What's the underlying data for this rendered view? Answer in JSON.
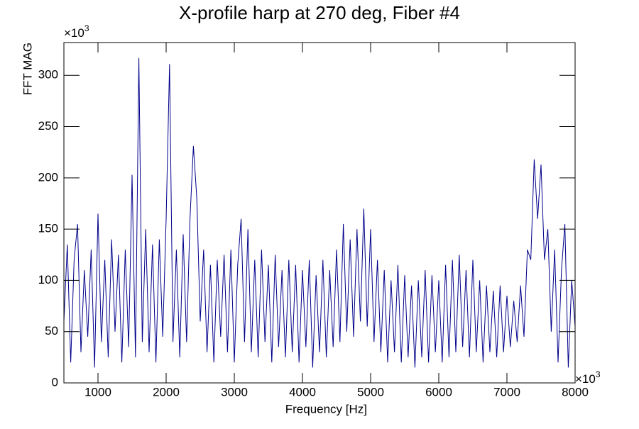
{
  "chart_data": {
    "type": "line",
    "title": "X-profile harp at 270 deg, Fiber #4",
    "x_label": "Frequency [Hz]",
    "y_label": "FFT MAG",
    "x_multiplier": {
      "base": "×10",
      "exp": "3"
    },
    "y_multiplier": {
      "base": "×10",
      "exp": "3"
    },
    "x": [
      500,
      550,
      600,
      650,
      700,
      750,
      800,
      850,
      900,
      950,
      1000,
      1050,
      1100,
      1150,
      1200,
      1250,
      1300,
      1350,
      1400,
      1450,
      1500,
      1550,
      1600,
      1650,
      1700,
      1750,
      1800,
      1850,
      1900,
      1950,
      2000,
      2050,
      2100,
      2150,
      2200,
      2250,
      2300,
      2350,
      2400,
      2450,
      2500,
      2550,
      2600,
      2650,
      2700,
      2750,
      2800,
      2850,
      2900,
      2950,
      3000,
      3050,
      3100,
      3150,
      3200,
      3250,
      3300,
      3350,
      3400,
      3450,
      3500,
      3550,
      3600,
      3650,
      3700,
      3750,
      3800,
      3850,
      3900,
      3950,
      4000,
      4050,
      4100,
      4150,
      4200,
      4250,
      4300,
      4350,
      4400,
      4450,
      4500,
      4550,
      4600,
      4650,
      4700,
      4750,
      4800,
      4850,
      4900,
      4950,
      5000,
      5050,
      5100,
      5150,
      5200,
      5250,
      5300,
      5350,
      5400,
      5450,
      5500,
      5550,
      5600,
      5650,
      5700,
      5750,
      5800,
      5850,
      5900,
      5950,
      6000,
      6050,
      6100,
      6150,
      6200,
      6250,
      6300,
      6350,
      6400,
      6450,
      6500,
      6550,
      6600,
      6650,
      6700,
      6750,
      6800,
      6850,
      6900,
      6950,
      7000,
      7050,
      7100,
      7150,
      7200,
      7250,
      7300,
      7350,
      7400,
      7450,
      7500,
      7550,
      7600,
      7650,
      7700,
      7750,
      7800,
      7850,
      7900,
      7950,
      8000
    ],
    "series": [
      {
        "color": "#00008b",
        "values": [
          60,
          135,
          20,
          120,
          155,
          30,
          110,
          45,
          130,
          15,
          165,
          40,
          120,
          25,
          140,
          50,
          125,
          20,
          130,
          35,
          203,
          25,
          317,
          40,
          150,
          30,
          135,
          20,
          140,
          45,
          160,
          311,
          40,
          130,
          25,
          145,
          40,
          160,
          231,
          180,
          60,
          130,
          30,
          115,
          20,
          120,
          45,
          125,
          30,
          130,
          20,
          115,
          160,
          40,
          150,
          30,
          120,
          25,
          130,
          40,
          115,
          20,
          125,
          35,
          110,
          25,
          120,
          30,
          115,
          20,
          110,
          35,
          120,
          15,
          105,
          30,
          120,
          25,
          110,
          35,
          130,
          40,
          155,
          50,
          140,
          45,
          150,
          60,
          170,
          55,
          150,
          40,
          120,
          30,
          110,
          20,
          100,
          30,
          115,
          20,
          105,
          25,
          95,
          15,
          100,
          25,
          110,
          20,
          105,
          30,
          100,
          20,
          115,
          25,
          120,
          30,
          125,
          35,
          110,
          25,
          120,
          30,
          100,
          20,
          95,
          30,
          90,
          25,
          95,
          30,
          85,
          35,
          80,
          40,
          95,
          45,
          130,
          120,
          218,
          160,
          213,
          120,
          150,
          50,
          130,
          20,
          110,
          155,
          15,
          100,
          55
        ]
      }
    ],
    "xlim": [
      500,
      8000
    ],
    "ylim": [
      0,
      332
    ],
    "xticks": [
      1000,
      2000,
      3000,
      4000,
      5000,
      6000,
      7000,
      8000
    ],
    "yticks": [
      0,
      50,
      100,
      150,
      200,
      250,
      300
    ]
  }
}
